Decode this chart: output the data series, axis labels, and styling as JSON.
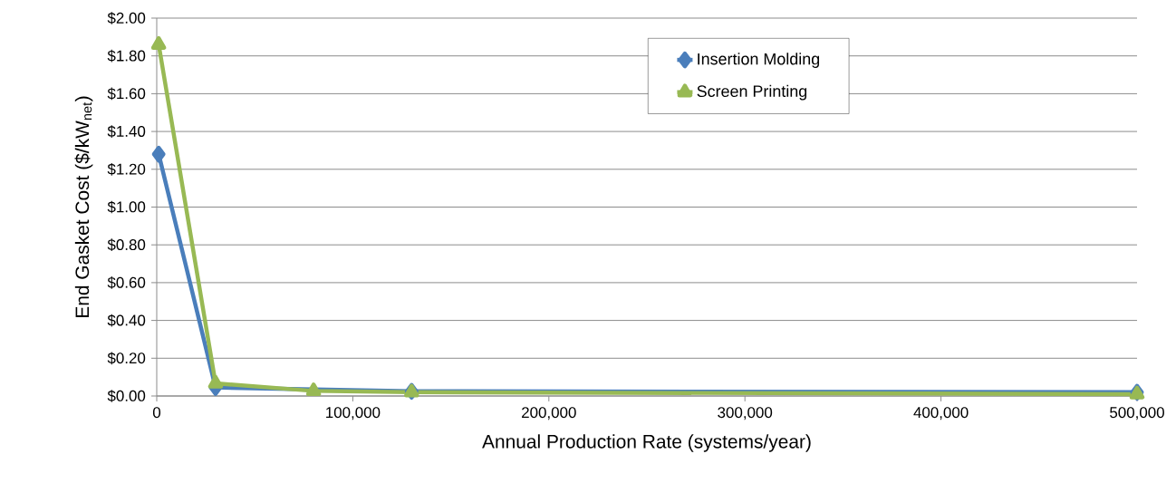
{
  "chart_data": {
    "type": "line",
    "xlabel": "Annual Production Rate (systems/year)",
    "ylabel": "End Gasket Cost ($/kW$_{net}$)",
    "x": [
      1000,
      30000,
      80000,
      130000,
      500000
    ],
    "series": [
      {
        "name": "Insertion Molding",
        "color": "#4a7ebb",
        "marker": "diamond",
        "values": [
          1.28,
          0.045,
          null,
          0.025,
          0.02
        ]
      },
      {
        "name": "Screen Printing",
        "color": "#98b954",
        "marker": "triangle",
        "values": [
          1.86,
          0.067,
          0.027,
          0.02,
          0.01
        ]
      }
    ],
    "xlim": [
      0,
      500000
    ],
    "xticks": [
      0,
      {
        "value": 100000,
        "label": "100,000"
      },
      {
        "value": 200000,
        "label": "200,000"
      },
      {
        "value": 300000,
        "label": "300,000"
      },
      {
        "value": 400000,
        "label": "400,000"
      },
      {
        "value": 500000,
        "label": "500,000"
      }
    ],
    "ylim": [
      0,
      2
    ],
    "yticks": [
      {
        "value": 0,
        "label": "$0.00"
      },
      {
        "value": 0.2,
        "label": "$0.20"
      },
      {
        "value": 0.4,
        "label": "$0.40"
      },
      {
        "value": 0.6,
        "label": "$0.60"
      },
      {
        "value": 0.8,
        "label": "$0.80"
      },
      {
        "value": 1.0,
        "label": "$1.00"
      },
      {
        "value": 1.2,
        "label": "$1.20"
      },
      {
        "value": 1.4,
        "label": "$1.40"
      },
      {
        "value": 1.6,
        "label": "$1.60"
      },
      {
        "value": 1.8,
        "label": "$1.80"
      },
      {
        "value": 2.0,
        "label": "$2.00"
      }
    ],
    "grid": "y",
    "legend": "top right",
    "line_style": "solid"
  }
}
